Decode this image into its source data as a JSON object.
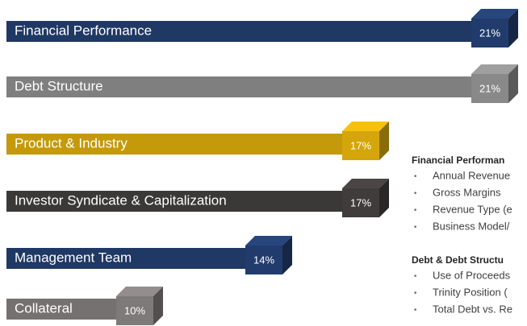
{
  "chart_data": {
    "type": "bar",
    "categories": [
      "Financial Performance",
      "Debt Structure",
      "Product & Industry",
      "Investor Syndicate & Capitalization",
      "Management Team",
      "Collateral"
    ],
    "values": [
      21,
      21,
      17,
      17,
      14,
      10
    ],
    "value_labels": [
      "21%",
      "21%",
      "17%",
      "17%",
      "14%",
      "10%"
    ],
    "colors": [
      "#1f3864",
      "#7f7f7f",
      "#c49a0a",
      "#3b3838",
      "#1f3864",
      "#767171"
    ]
  },
  "notes": [
    {
      "heading": "Financial Performan",
      "items": [
        "Annual Revenue",
        "Gross Margins",
        "Revenue Type (e",
        "Business Model/"
      ]
    },
    {
      "heading": "Debt & Debt Structu",
      "items": [
        "Use of Proceeds",
        "Trinity Position (",
        "Total Debt vs. Re"
      ]
    }
  ]
}
